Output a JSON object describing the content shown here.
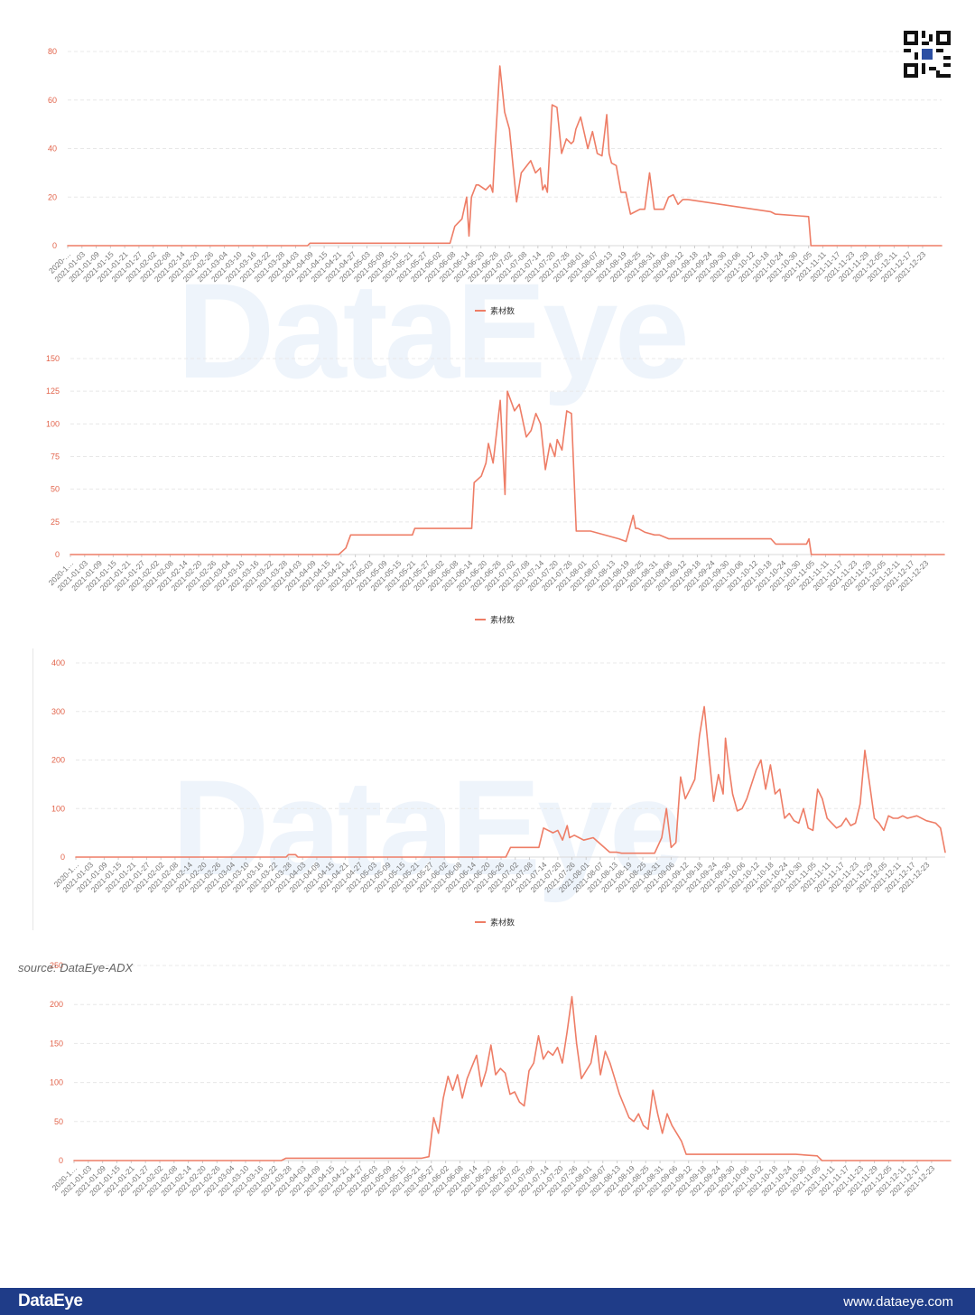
{
  "branding": {
    "watermark": "DataEye",
    "source": "source: DataEye-ADX",
    "footer_brand": "DataEye",
    "footer_site": "www.dataeye.com"
  },
  "colors": {
    "line": "#ee7d66",
    "grid": "#e8e8e8",
    "tick_text": "#e2644b",
    "xtick_text": "#777777",
    "footer_bg": "#1f3c88"
  },
  "icons": [
    "qr-code-icon",
    "legend-line-icon"
  ],
  "chart_data": [
    {
      "type": "line",
      "title": "",
      "xlabel": "",
      "ylabel": "",
      "yticks": [
        0,
        20,
        40,
        60,
        80
      ],
      "ylim": [
        0,
        80
      ],
      "xlim": [
        "2020-12-28",
        "2021-12-31"
      ],
      "first_tick_label": "2020-…",
      "xticks": [
        "2021-01-03",
        "2021-01-09",
        "2021-01-15",
        "2021-01-21",
        "2021-01-27",
        "2021-02-02",
        "2021-02-08",
        "2021-02-14",
        "2021-02-20",
        "2021-02-26",
        "2021-03-04",
        "2021-03-10",
        "2021-03-16",
        "2021-03-22",
        "2021-03-28",
        "2021-04-03",
        "2021-04-09",
        "2021-04-15",
        "2021-04-21",
        "2021-04-27",
        "2021-05-03",
        "2021-05-09",
        "2021-05-15",
        "2021-05-21",
        "2021-05-27",
        "2021-06-02",
        "2021-06-08",
        "2021-06-14",
        "2021-06-20",
        "2021-06-26",
        "2021-07-02",
        "2021-07-08",
        "2021-07-14",
        "2021-07-20",
        "2021-07-26",
        "2021-08-01",
        "2021-08-07",
        "2021-08-13",
        "2021-08-19",
        "2021-08-25",
        "2021-08-31",
        "2021-09-06",
        "2021-09-12",
        "2021-09-18",
        "2021-09-24",
        "2021-09-30",
        "2021-10-06",
        "2021-10-12",
        "2021-10-18",
        "2021-10-24",
        "2021-10-30",
        "2021-11-05",
        "2021-11-11",
        "2021-11-17",
        "2021-11-23",
        "2021-11-29",
        "2021-12-05",
        "2021-12-11",
        "2021-12-17",
        "2021-12-23"
      ],
      "legend": "素材数",
      "legend_position": "bottom-center",
      "grid": "horizontal-dashed",
      "series": [
        {
          "name": "素材数",
          "x": [
            "2020-12-28",
            "2021-04-08",
            "2021-04-09",
            "2021-06-07",
            "2021-06-09",
            "2021-06-12",
            "2021-06-14",
            "2021-06-15",
            "2021-06-16",
            "2021-06-18",
            "2021-06-19",
            "2021-06-22",
            "2021-06-24",
            "2021-06-25",
            "2021-06-26",
            "2021-06-28",
            "2021-06-30",
            "2021-07-02",
            "2021-07-05",
            "2021-07-07",
            "2021-07-11",
            "2021-07-13",
            "2021-07-15",
            "2021-07-16",
            "2021-07-17",
            "2021-07-18",
            "2021-07-20",
            "2021-07-22",
            "2021-07-24",
            "2021-07-26",
            "2021-07-28",
            "2021-07-29",
            "2021-07-30",
            "2021-08-01",
            "2021-08-04",
            "2021-08-06",
            "2021-08-08",
            "2021-08-10",
            "2021-08-12",
            "2021-08-13",
            "2021-08-14",
            "2021-08-16",
            "2021-08-18",
            "2021-08-20",
            "2021-08-22",
            "2021-08-24",
            "2021-08-26",
            "2021-08-28",
            "2021-08-30",
            "2021-09-01",
            "2021-09-03",
            "2021-09-05",
            "2021-09-07",
            "2021-09-09",
            "2021-09-11",
            "2021-09-13",
            "2021-09-15",
            "2021-10-20",
            "2021-10-22",
            "2021-11-05",
            "2021-11-06",
            "2021-12-31"
          ],
          "values": [
            0,
            0,
            1,
            1,
            8,
            11,
            20,
            4,
            20,
            25,
            25,
            23,
            25,
            22,
            41,
            74,
            55,
            48,
            18,
            30,
            35,
            30,
            32,
            23,
            25,
            22,
            58,
            57,
            38,
            44,
            42,
            43,
            48,
            53,
            40,
            47,
            38,
            37,
            54,
            38,
            34,
            33,
            22,
            22,
            13,
            14,
            15,
            15,
            30,
            15,
            15,
            15,
            20,
            21,
            17,
            19,
            19,
            14,
            13,
            12,
            0,
            0
          ]
        }
      ]
    },
    {
      "type": "line",
      "title": "",
      "xlabel": "",
      "ylabel": "",
      "yticks": [
        0,
        25,
        50,
        75,
        100,
        125,
        150
      ],
      "ylim": [
        0,
        150
      ],
      "xlim": [
        "2020-12-28",
        "2021-12-31"
      ],
      "first_tick_label": "2020-1…",
      "xticks": [
        "2021-01-03",
        "2021-01-09",
        "2021-01-15",
        "2021-01-21",
        "2021-01-27",
        "2021-02-02",
        "2021-02-08",
        "2021-02-14",
        "2021-02-20",
        "2021-02-26",
        "2021-03-04",
        "2021-03-10",
        "2021-03-16",
        "2021-03-22",
        "2021-03-28",
        "2021-04-03",
        "2021-04-09",
        "2021-04-15",
        "2021-04-21",
        "2021-04-27",
        "2021-05-03",
        "2021-05-09",
        "2021-05-15",
        "2021-05-21",
        "2021-05-27",
        "2021-06-02",
        "2021-06-08",
        "2021-06-14",
        "2021-06-20",
        "2021-06-26",
        "2021-07-02",
        "2021-07-08",
        "2021-07-14",
        "2021-07-20",
        "2021-07-26",
        "2021-08-01",
        "2021-08-07",
        "2021-08-13",
        "2021-08-19",
        "2021-08-25",
        "2021-08-31",
        "2021-09-06",
        "2021-09-12",
        "2021-09-18",
        "2021-09-24",
        "2021-09-30",
        "2021-10-06",
        "2021-10-12",
        "2021-10-18",
        "2021-10-24",
        "2021-10-30",
        "2021-11-05",
        "2021-11-11",
        "2021-11-17",
        "2021-11-23",
        "2021-11-29",
        "2021-12-05",
        "2021-12-11",
        "2021-12-17",
        "2021-12-23"
      ],
      "legend": "素材数",
      "legend_position": "bottom-center",
      "grid": "horizontal-dashed",
      "series": [
        {
          "name": "素材数",
          "x": [
            "2020-12-28",
            "2021-04-20",
            "2021-04-23",
            "2021-04-25",
            "2021-05-21",
            "2021-05-22",
            "2021-06-15",
            "2021-06-16",
            "2021-06-19",
            "2021-06-21",
            "2021-06-22",
            "2021-06-24",
            "2021-06-27",
            "2021-06-29",
            "2021-06-30",
            "2021-07-02",
            "2021-07-03",
            "2021-07-05",
            "2021-07-08",
            "2021-07-10",
            "2021-07-12",
            "2021-07-14",
            "2021-07-16",
            "2021-07-18",
            "2021-07-20",
            "2021-07-21",
            "2021-07-23",
            "2021-07-25",
            "2021-07-27",
            "2021-07-29",
            "2021-08-01",
            "2021-08-03",
            "2021-08-04",
            "2021-08-16",
            "2021-08-19",
            "2021-08-22",
            "2021-08-23",
            "2021-08-24",
            "2021-08-27",
            "2021-08-31",
            "2021-09-02",
            "2021-09-06",
            "2021-09-10",
            "2021-10-19",
            "2021-10-21",
            "2021-11-03",
            "2021-11-04",
            "2021-11-05",
            "2021-12-31"
          ],
          "values": [
            0,
            0,
            5,
            15,
            15,
            20,
            20,
            55,
            60,
            70,
            85,
            70,
            118,
            46,
            125,
            115,
            110,
            115,
            90,
            95,
            108,
            100,
            65,
            85,
            75,
            88,
            80,
            110,
            108,
            18,
            18,
            18,
            18,
            12,
            10,
            30,
            20,
            20,
            17,
            15,
            15,
            12,
            12,
            12,
            8,
            8,
            12,
            0,
            0
          ]
        }
      ]
    },
    {
      "type": "line",
      "title": "",
      "xlabel": "",
      "ylabel": "",
      "yticks": [
        0,
        100,
        200,
        300,
        400
      ],
      "ylim": [
        0,
        400
      ],
      "xlim": [
        "2020-12-28",
        "2021-12-31"
      ],
      "first_tick_label": "2020-1…",
      "xticks": [
        "2021-01-03",
        "2021-01-09",
        "2021-01-15",
        "2021-01-21",
        "2021-01-27",
        "2021-02-02",
        "2021-02-08",
        "2021-02-14",
        "2021-02-20",
        "2021-02-26",
        "2021-03-04",
        "2021-03-10",
        "2021-03-16",
        "2021-03-22",
        "2021-03-28",
        "2021-04-03",
        "2021-04-09",
        "2021-04-15",
        "2021-04-21",
        "2021-04-27",
        "2021-05-03",
        "2021-05-09",
        "2021-05-15",
        "2021-05-21",
        "2021-05-27",
        "2021-06-02",
        "2021-06-08",
        "2021-06-14",
        "2021-06-20",
        "2021-06-26",
        "2021-07-02",
        "2021-07-08",
        "2021-07-14",
        "2021-07-20",
        "2021-07-26",
        "2021-08-01",
        "2021-08-07",
        "2021-08-13",
        "2021-08-19",
        "2021-08-25",
        "2021-08-31",
        "2021-09-06",
        "2021-09-12",
        "2021-09-18",
        "2021-09-24",
        "2021-09-30",
        "2021-10-06",
        "2021-10-12",
        "2021-10-18",
        "2021-10-24",
        "2021-10-30",
        "2021-11-05",
        "2021-11-11",
        "2021-11-17",
        "2021-11-23",
        "2021-11-29",
        "2021-12-05",
        "2021-12-11",
        "2021-12-17",
        "2021-12-23"
      ],
      "legend": "素材数",
      "legend_position": "bottom-center",
      "grid": "horizontal-dashed",
      "series": [
        {
          "name": "素材数",
          "x": [
            "2020-12-28",
            "2021-03-27",
            "2021-03-28",
            "2021-03-31",
            "2021-04-01",
            "2021-06-28",
            "2021-06-30",
            "2021-07-12",
            "2021-07-14",
            "2021-07-18",
            "2021-07-20",
            "2021-07-22",
            "2021-07-24",
            "2021-07-25",
            "2021-07-27",
            "2021-07-29",
            "2021-07-31",
            "2021-08-04",
            "2021-08-11",
            "2021-08-14",
            "2021-08-16",
            "2021-08-30",
            "2021-09-02",
            "2021-09-04",
            "2021-09-06",
            "2021-09-08",
            "2021-09-10",
            "2021-09-12",
            "2021-09-14",
            "2021-09-16",
            "2021-09-18",
            "2021-09-20",
            "2021-09-22",
            "2021-09-24",
            "2021-09-26",
            "2021-09-28",
            "2021-09-29",
            "2021-09-30",
            "2021-10-02",
            "2021-10-04",
            "2021-10-06",
            "2021-10-08",
            "2021-10-10",
            "2021-10-12",
            "2021-10-14",
            "2021-10-16",
            "2021-10-18",
            "2021-10-20",
            "2021-10-22",
            "2021-10-24",
            "2021-10-26",
            "2021-10-28",
            "2021-10-30",
            "2021-11-01",
            "2021-11-03",
            "2021-11-05",
            "2021-11-07",
            "2021-11-09",
            "2021-11-11",
            "2021-11-13",
            "2021-11-15",
            "2021-11-17",
            "2021-11-19",
            "2021-11-21",
            "2021-11-23",
            "2021-11-25",
            "2021-11-27",
            "2021-11-29",
            "2021-12-01",
            "2021-12-03",
            "2021-12-05",
            "2021-12-07",
            "2021-12-09",
            "2021-12-11",
            "2021-12-13",
            "2021-12-15",
            "2021-12-19",
            "2021-12-23",
            "2021-12-27",
            "2021-12-29",
            "2021-12-31"
          ],
          "values": [
            0,
            0,
            5,
            5,
            0,
            0,
            20,
            20,
            60,
            50,
            55,
            35,
            65,
            40,
            45,
            40,
            35,
            40,
            10,
            10,
            8,
            8,
            40,
            100,
            20,
            30,
            165,
            120,
            140,
            160,
            250,
            310,
            210,
            115,
            170,
            130,
            245,
            200,
            130,
            95,
            100,
            120,
            150,
            180,
            200,
            140,
            190,
            130,
            140,
            80,
            90,
            75,
            70,
            100,
            60,
            55,
            140,
            120,
            80,
            70,
            60,
            65,
            80,
            65,
            70,
            110,
            220,
            150,
            80,
            70,
            55,
            85,
            80,
            80,
            85,
            80,
            85,
            75,
            70,
            60,
            10
          ]
        }
      ]
    },
    {
      "type": "line",
      "title": "",
      "xlabel": "",
      "ylabel": "",
      "yticks": [
        0,
        50,
        100,
        150,
        200,
        250
      ],
      "ylim": [
        0,
        250
      ],
      "xlim": [
        "2020-12-28",
        "2021-12-31"
      ],
      "first_tick_label": "2020-1…",
      "xticks": [
        "2021-01-03",
        "2021-01-09",
        "2021-01-15",
        "2021-01-21",
        "2021-01-27",
        "2021-02-02",
        "2021-02-08",
        "2021-02-14",
        "2021-02-20",
        "2021-02-26",
        "2021-03-04",
        "2021-03-10",
        "2021-03-16",
        "2021-03-22",
        "2021-03-28",
        "2021-04-03",
        "2021-04-09",
        "2021-04-15",
        "2021-04-21",
        "2021-04-27",
        "2021-05-03",
        "2021-05-09",
        "2021-05-15",
        "2021-05-21",
        "2021-05-27",
        "2021-06-02",
        "2021-06-08",
        "2021-06-14",
        "2021-06-20",
        "2021-06-26",
        "2021-07-02",
        "2021-07-08",
        "2021-07-14",
        "2021-07-20",
        "2021-07-26",
        "2021-08-01",
        "2021-08-07",
        "2021-08-13",
        "2021-08-19",
        "2021-08-25",
        "2021-08-31",
        "2021-09-06",
        "2021-09-12",
        "2021-09-18",
        "2021-09-24",
        "2021-09-30",
        "2021-10-06",
        "2021-10-12",
        "2021-10-18",
        "2021-10-24",
        "2021-10-30",
        "2021-11-05",
        "2021-11-11",
        "2021-11-17",
        "2021-11-23",
        "2021-11-29",
        "2021-12-05",
        "2021-12-11",
        "2021-12-17",
        "2021-12-23"
      ],
      "legend": "",
      "grid": "horizontal-dashed",
      "series": [
        {
          "x": [
            "2020-12-28",
            "2021-03-25",
            "2021-03-27",
            "2021-05-23",
            "2021-05-26",
            "2021-05-28",
            "2021-05-30",
            "2021-06-01",
            "2021-06-03",
            "2021-06-05",
            "2021-06-07",
            "2021-06-09",
            "2021-06-11",
            "2021-06-13",
            "2021-06-15",
            "2021-06-17",
            "2021-06-19",
            "2021-06-21",
            "2021-06-23",
            "2021-06-25",
            "2021-06-27",
            "2021-06-29",
            "2021-07-01",
            "2021-07-03",
            "2021-07-05",
            "2021-07-07",
            "2021-07-09",
            "2021-07-11",
            "2021-07-13",
            "2021-07-15",
            "2021-07-17",
            "2021-07-19",
            "2021-07-21",
            "2021-07-23",
            "2021-07-25",
            "2021-07-27",
            "2021-07-29",
            "2021-07-31",
            "2021-08-02",
            "2021-08-04",
            "2021-08-06",
            "2021-08-08",
            "2021-08-10",
            "2021-08-12",
            "2021-08-14",
            "2021-08-16",
            "2021-08-18",
            "2021-08-20",
            "2021-08-22",
            "2021-08-24",
            "2021-08-26",
            "2021-08-28",
            "2021-08-30",
            "2021-09-01",
            "2021-09-03",
            "2021-09-05",
            "2021-09-07",
            "2021-09-09",
            "2021-09-11",
            "2021-09-13",
            "2021-09-15",
            "2021-09-17",
            "2021-09-19",
            "2021-09-21",
            "2021-09-23",
            "2021-09-25",
            "2021-09-27",
            "2021-10-27",
            "2021-11-05",
            "2021-11-07",
            "2021-12-31"
          ],
          "values": [
            0,
            0,
            3,
            3,
            5,
            55,
            35,
            80,
            108,
            90,
            110,
            80,
            105,
            120,
            135,
            95,
            115,
            148,
            110,
            118,
            112,
            85,
            88,
            75,
            70,
            115,
            125,
            160,
            130,
            140,
            135,
            145,
            125,
            165,
            210,
            150,
            105,
            115,
            125,
            160,
            110,
            140,
            125,
            105,
            85,
            70,
            55,
            50,
            60,
            45,
            40,
            90,
            60,
            35,
            60,
            45,
            35,
            25,
            8,
            8,
            8,
            8,
            8,
            8,
            8,
            8,
            8,
            8,
            6,
            0,
            0
          ]
        }
      ]
    }
  ]
}
